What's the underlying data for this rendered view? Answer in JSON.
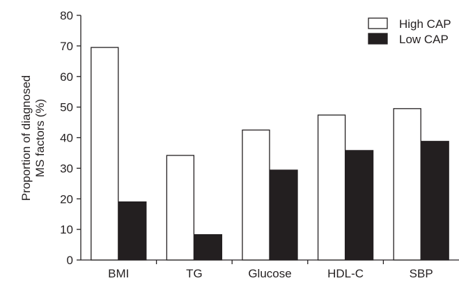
{
  "chart_data": {
    "type": "bar",
    "title": "",
    "xlabel": "",
    "ylabel": [
      "Proportion of diagnosed",
      "MS factors (%)"
    ],
    "ylim": [
      0,
      80
    ],
    "yticks": [
      0,
      10,
      20,
      30,
      40,
      50,
      60,
      70,
      80
    ],
    "categories": [
      "BMI",
      "TG",
      "Glucose",
      "HDL-C",
      "SBP"
    ],
    "series": [
      {
        "name": "High CAP",
        "fill": "#ffffff",
        "values": [
          69.5,
          34.2,
          42.5,
          47.4,
          49.5
        ]
      },
      {
        "name": "Low CAP",
        "fill": "#231f20",
        "values": [
          19.0,
          8.3,
          29.4,
          35.8,
          38.8
        ]
      }
    ],
    "legend": {
      "placement": "top-right"
    },
    "grid": false
  }
}
